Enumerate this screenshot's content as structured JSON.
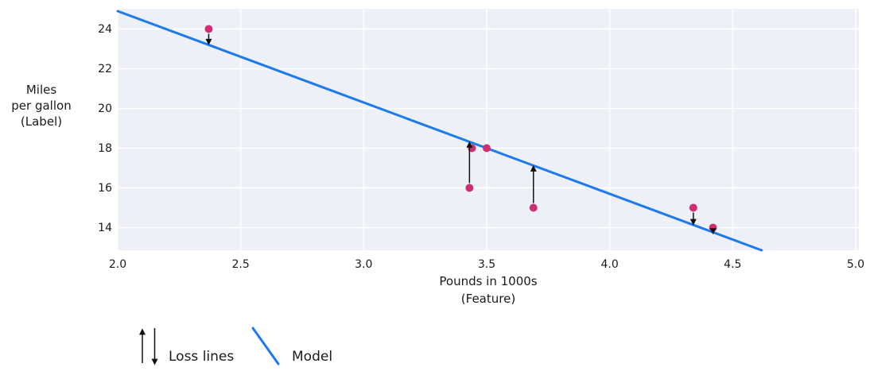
{
  "figure": {
    "background_color": "#ffffff",
    "text_color": "#1a1a1a"
  },
  "chart_data": {
    "type": "scatter",
    "title": "",
    "xlabel": [
      "Pounds in 1000s",
      "(Feature)"
    ],
    "ylabel": [
      "Miles",
      "per gallon",
      "(Label)"
    ],
    "xlim": [
      2.0,
      5.013
    ],
    "ylim": [
      12.86,
      25.02
    ],
    "xtick_values": [
      2.0,
      2.5,
      3.0,
      3.5,
      4.0,
      4.5,
      5.0
    ],
    "xtick_labels": [
      "2.0",
      "2.5",
      "3.0",
      "3.5",
      "4.0",
      "4.5",
      "5.0"
    ],
    "ytick_values": [
      14,
      16,
      18,
      20,
      22,
      24
    ],
    "ytick_labels": [
      "14",
      "16",
      "18",
      "20",
      "22",
      "24"
    ],
    "grid": true,
    "grid_color": "#ffffff",
    "plot_bg_color": "#edf1f7",
    "point_color": "#d02e74",
    "loss_color": "#111111",
    "points": [
      {
        "x": 2.37,
        "y": 24
      },
      {
        "x": 3.44,
        "y": 18
      },
      {
        "x": 3.5,
        "y": 18
      },
      {
        "x": 3.43,
        "y": 16
      },
      {
        "x": 3.69,
        "y": 15
      },
      {
        "x": 4.34,
        "y": 15
      },
      {
        "x": 4.42,
        "y": 14
      }
    ],
    "model": {
      "slope": -4.6,
      "intercept": 34.1,
      "color": "#1c79f0"
    },
    "loss_lines": [
      {
        "x": 2.37,
        "from": 24,
        "to": 23.25
      },
      {
        "x": 3.43,
        "from": 16,
        "to": 18.28
      },
      {
        "x": 3.69,
        "from": 15,
        "to": 17.08
      },
      {
        "x": 4.34,
        "from": 15,
        "to": 14.18
      },
      {
        "x": 4.42,
        "from": 14,
        "to": 13.72
      }
    ],
    "legend_position": "bottom-left"
  },
  "legend": {
    "loss_label": "Loss lines",
    "model_label": "Model"
  }
}
